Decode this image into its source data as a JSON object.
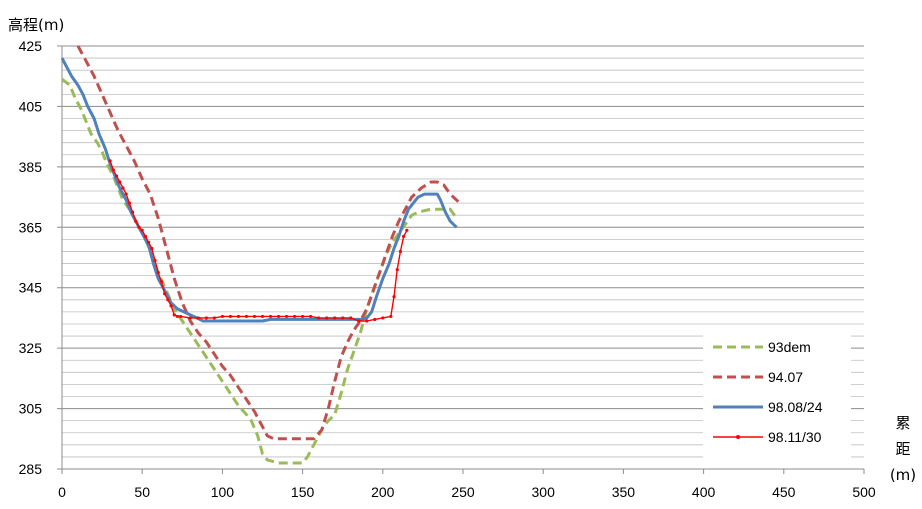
{
  "chart_data": {
    "type": "line",
    "ylabel": "高程(m)",
    "xlabel_chars": [
      "累",
      "距"
    ],
    "xlabel_unit": "(m)",
    "xlim": [
      0,
      500
    ],
    "ylim": [
      285,
      425
    ],
    "x_ticks": [
      0,
      50,
      100,
      150,
      200,
      250,
      300,
      350,
      400,
      450,
      500
    ],
    "y_ticks": [
      285,
      305,
      325,
      345,
      365,
      385,
      405,
      425
    ],
    "grid": true,
    "minor_grid_step": 4,
    "legend": "bottom-right",
    "series": [
      {
        "name": "93dem",
        "color": "#9bbb59",
        "style": "dashed",
        "points": [
          [
            0,
            414
          ],
          [
            5,
            412
          ],
          [
            8,
            408
          ],
          [
            12,
            404
          ],
          [
            15,
            400
          ],
          [
            18,
            396
          ],
          [
            22,
            393
          ],
          [
            25,
            390
          ],
          [
            28,
            386
          ],
          [
            32,
            382
          ],
          [
            35,
            378
          ],
          [
            38,
            374
          ],
          [
            42,
            371
          ],
          [
            45,
            368
          ],
          [
            48,
            365
          ],
          [
            52,
            361
          ],
          [
            56,
            356
          ],
          [
            60,
            350
          ],
          [
            65,
            344
          ],
          [
            70,
            338
          ],
          [
            75,
            334
          ],
          [
            80,
            330
          ],
          [
            85,
            326
          ],
          [
            90,
            322
          ],
          [
            95,
            318
          ],
          [
            100,
            314
          ],
          [
            105,
            310
          ],
          [
            110,
            306
          ],
          [
            115,
            303
          ],
          [
            118,
            301
          ],
          [
            122,
            296
          ],
          [
            125,
            290
          ],
          [
            128,
            288
          ],
          [
            135,
            287
          ],
          [
            142,
            287
          ],
          [
            150,
            287
          ],
          [
            153,
            289
          ],
          [
            157,
            293
          ],
          [
            160,
            296
          ],
          [
            163,
            299
          ],
          [
            166,
            301
          ],
          [
            170,
            303
          ],
          [
            174,
            310
          ],
          [
            178,
            318
          ],
          [
            182,
            324
          ],
          [
            186,
            330
          ],
          [
            190,
            338
          ],
          [
            194,
            344
          ],
          [
            198,
            350
          ],
          [
            202,
            356
          ],
          [
            206,
            360
          ],
          [
            210,
            363
          ],
          [
            214,
            366
          ],
          [
            218,
            369
          ],
          [
            222,
            370
          ],
          [
            230,
            371
          ],
          [
            238,
            371
          ],
          [
            242,
            371
          ],
          [
            246,
            368
          ]
        ]
      },
      {
        "name": "94.07",
        "color": "#c0504d",
        "style": "dashed",
        "points": [
          [
            10,
            425
          ],
          [
            15,
            420
          ],
          [
            20,
            415
          ],
          [
            25,
            409
          ],
          [
            30,
            403
          ],
          [
            35,
            397
          ],
          [
            40,
            392
          ],
          [
            45,
            387
          ],
          [
            50,
            381
          ],
          [
            55,
            376
          ],
          [
            60,
            368
          ],
          [
            65,
            358
          ],
          [
            70,
            348
          ],
          [
            75,
            340
          ],
          [
            80,
            334
          ],
          [
            85,
            330
          ],
          [
            90,
            327
          ],
          [
            95,
            323
          ],
          [
            100,
            319
          ],
          [
            105,
            316
          ],
          [
            110,
            312
          ],
          [
            115,
            308
          ],
          [
            120,
            304
          ],
          [
            125,
            299
          ],
          [
            128,
            296
          ],
          [
            132,
            295
          ],
          [
            140,
            295
          ],
          [
            150,
            295
          ],
          [
            157,
            295
          ],
          [
            162,
            298
          ],
          [
            166,
            305
          ],
          [
            170,
            314
          ],
          [
            174,
            322
          ],
          [
            178,
            327
          ],
          [
            182,
            331
          ],
          [
            186,
            334
          ],
          [
            190,
            338
          ],
          [
            194,
            344
          ],
          [
            198,
            350
          ],
          [
            202,
            356
          ],
          [
            206,
            362
          ],
          [
            210,
            367
          ],
          [
            214,
            371
          ],
          [
            218,
            375
          ],
          [
            224,
            378
          ],
          [
            230,
            380
          ],
          [
            234,
            380
          ],
          [
            238,
            379
          ],
          [
            242,
            376
          ],
          [
            248,
            373
          ]
        ]
      },
      {
        "name": "98.08/24",
        "color": "#4f81bd",
        "style": "solid",
        "points": [
          [
            0,
            421
          ],
          [
            3,
            418
          ],
          [
            6,
            415
          ],
          [
            10,
            412
          ],
          [
            13,
            409
          ],
          [
            16,
            405
          ],
          [
            20,
            401
          ],
          [
            23,
            396
          ],
          [
            27,
            391
          ],
          [
            30,
            386
          ],
          [
            33,
            382
          ],
          [
            36,
            378
          ],
          [
            40,
            374
          ],
          [
            43,
            370
          ],
          [
            46,
            367
          ],
          [
            50,
            363
          ],
          [
            54,
            359
          ],
          [
            57,
            353
          ],
          [
            60,
            348
          ],
          [
            64,
            344
          ],
          [
            68,
            340
          ],
          [
            72,
            338
          ],
          [
            76,
            337
          ],
          [
            80,
            336
          ],
          [
            84,
            335
          ],
          [
            88,
            334
          ],
          [
            95,
            334
          ],
          [
            105,
            334
          ],
          [
            115,
            334
          ],
          [
            125,
            334
          ],
          [
            130,
            334.5
          ],
          [
            140,
            334.5
          ],
          [
            150,
            334.5
          ],
          [
            160,
            334.5
          ],
          [
            170,
            334.5
          ],
          [
            178,
            334.5
          ],
          [
            186,
            334.5
          ],
          [
            190,
            335
          ],
          [
            193,
            337
          ],
          [
            196,
            342
          ],
          [
            200,
            348
          ],
          [
            204,
            353
          ],
          [
            207,
            358
          ],
          [
            210,
            362
          ],
          [
            213,
            367
          ],
          [
            216,
            371
          ],
          [
            219,
            373
          ],
          [
            222,
            375
          ],
          [
            226,
            376
          ],
          [
            230,
            376
          ],
          [
            234,
            376
          ],
          [
            236,
            374
          ],
          [
            239,
            370
          ],
          [
            242,
            367
          ],
          [
            246,
            365
          ]
        ]
      },
      {
        "name": "98.11/30",
        "color": "#ff0000",
        "style": "solid-marker",
        "points": [
          [
            30,
            387
          ],
          [
            32,
            384
          ],
          [
            34,
            382
          ],
          [
            36,
            380
          ],
          [
            38,
            378
          ],
          [
            40,
            376
          ],
          [
            42,
            373
          ],
          [
            44,
            370
          ],
          [
            46,
            367
          ],
          [
            48,
            365
          ],
          [
            50,
            364
          ],
          [
            52,
            362
          ],
          [
            54,
            360
          ],
          [
            56,
            358
          ],
          [
            58,
            354
          ],
          [
            60,
            350
          ],
          [
            62,
            347
          ],
          [
            64,
            343
          ],
          [
            66,
            341
          ],
          [
            68,
            339
          ],
          [
            70,
            336
          ],
          [
            72,
            335.5
          ],
          [
            74,
            335.5
          ],
          [
            80,
            335
          ],
          [
            85,
            335
          ],
          [
            90,
            335
          ],
          [
            95,
            335
          ],
          [
            100,
            335.5
          ],
          [
            105,
            335.5
          ],
          [
            110,
            335.5
          ],
          [
            115,
            335.5
          ],
          [
            120,
            335.5
          ],
          [
            125,
            335.5
          ],
          [
            130,
            335.5
          ],
          [
            135,
            335.5
          ],
          [
            140,
            335.5
          ],
          [
            145,
            335.5
          ],
          [
            150,
            335.5
          ],
          [
            155,
            335.5
          ],
          [
            160,
            335
          ],
          [
            165,
            335
          ],
          [
            170,
            335
          ],
          [
            175,
            335
          ],
          [
            180,
            335
          ],
          [
            185,
            334
          ],
          [
            190,
            334
          ],
          [
            195,
            334.5
          ],
          [
            200,
            335
          ],
          [
            205,
            335.5
          ],
          [
            207,
            342
          ],
          [
            209,
            351
          ],
          [
            211,
            357
          ],
          [
            213,
            362
          ],
          [
            215,
            364
          ]
        ]
      }
    ]
  }
}
